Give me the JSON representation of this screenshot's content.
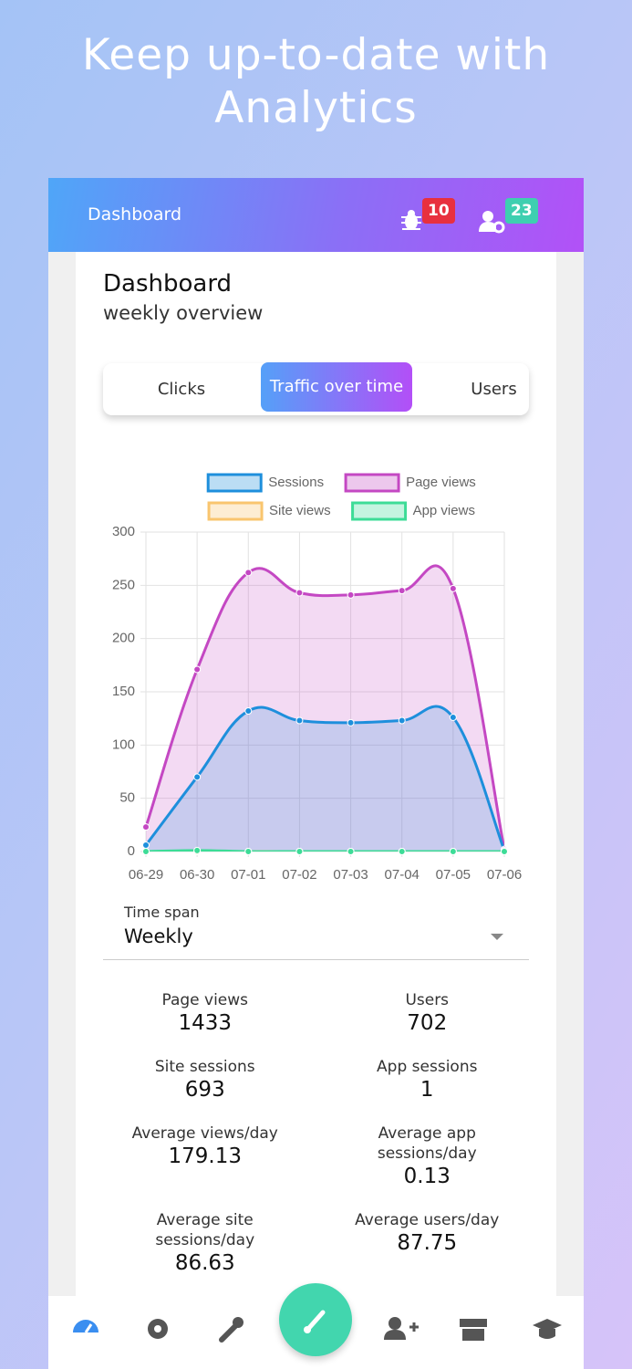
{
  "headline": "Keep up-to-date with Analytics",
  "app_bar": {
    "title": "Dashboard",
    "badges": [
      "10",
      "23"
    ]
  },
  "card": {
    "title": "Dashboard",
    "subtitle": "weekly overview"
  },
  "tabs": [
    "Clicks",
    "Traffic over time",
    "Users"
  ],
  "active_tab": 1,
  "chart_data": {
    "type": "line",
    "categories": [
      "06-29",
      "06-30",
      "07-01",
      "07-02",
      "07-03",
      "07-04",
      "07-05",
      "07-06"
    ],
    "series": [
      {
        "name": "Sessions",
        "color": "#1e8fdc",
        "values": [
          6,
          70,
          132,
          123,
          121,
          123,
          126,
          1
        ]
      },
      {
        "name": "Page views",
        "color": "#c448c3",
        "values": [
          23,
          171,
          262,
          243,
          241,
          245,
          247,
          2
        ]
      },
      {
        "name": "Site views",
        "color": "#f9c56e",
        "values": [
          0,
          0,
          0,
          0,
          0,
          0,
          0,
          0
        ]
      },
      {
        "name": "App views",
        "color": "#3ddc97",
        "values": [
          0,
          1,
          0,
          0,
          0,
          0,
          0,
          0
        ]
      }
    ],
    "ylim": [
      0,
      300
    ],
    "yticks": [
      0,
      50,
      100,
      150,
      200,
      250,
      300
    ],
    "grid": true
  },
  "time_span": {
    "label": "Time span",
    "value": "Weekly"
  },
  "stats": [
    {
      "label": "Page views",
      "value": "1433"
    },
    {
      "label": "Users",
      "value": "702"
    },
    {
      "label": "Site sessions",
      "value": "693"
    },
    {
      "label": "App sessions",
      "value": "1"
    },
    {
      "label": "Average views/day",
      "value": "179.13"
    },
    {
      "label": "Average app sessions/day",
      "value": "0.13"
    },
    {
      "label": "Average site sessions/day",
      "value": "86.63"
    },
    {
      "label": "Average users/day",
      "value": "87.75"
    }
  ]
}
